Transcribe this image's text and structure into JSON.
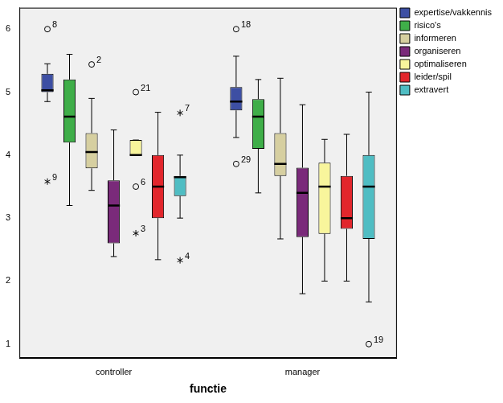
{
  "chart_data": {
    "type": "box",
    "x_label": "functie",
    "categories": [
      "controller",
      "manager"
    ],
    "ylim": [
      0.78,
      6.34
    ],
    "yticks": [
      1,
      2,
      3,
      4,
      5,
      6
    ],
    "grid": false,
    "legend": "right",
    "series": [
      {
        "name": "expertise/vakkennis",
        "color": "#3d4fa3",
        "values": [
          {
            "min": 4.85,
            "q1": 5.0,
            "median": 5.03,
            "q3": 5.29,
            "max": 5.45,
            "outliers": [
              {
                "value": 6.0,
                "label": "8",
                "marker": "circle"
              },
              {
                "value": 3.58,
                "label": "9",
                "marker": "star"
              }
            ]
          },
          {
            "min": 4.28,
            "q1": 4.71,
            "median": 4.85,
            "q3": 5.08,
            "max": 5.57,
            "outliers": [
              {
                "value": 6.0,
                "label": "18",
                "marker": "circle"
              },
              {
                "value": 3.86,
                "label": "29",
                "marker": "circle"
              }
            ]
          }
        ]
      },
      {
        "name": "risico's",
        "color": "#3fae49",
        "values": [
          {
            "min": 3.2,
            "q1": 4.2,
            "median": 4.61,
            "q3": 5.2,
            "max": 5.6,
            "outliers": []
          },
          {
            "min": 3.4,
            "q1": 4.1,
            "median": 4.61,
            "q3": 4.89,
            "max": 5.2,
            "outliers": []
          }
        ]
      },
      {
        "name": "informeren",
        "color": "#d6cfa0",
        "values": [
          {
            "min": 3.44,
            "q1": 3.79,
            "median": 4.05,
            "q3": 4.35,
            "max": 4.9,
            "outliers": [
              {
                "value": 5.44,
                "label": "2",
                "marker": "circle"
              }
            ]
          },
          {
            "min": 2.67,
            "q1": 3.67,
            "median": 3.86,
            "q3": 4.35,
            "max": 5.22,
            "outliers": []
          }
        ]
      },
      {
        "name": "organiseren",
        "color": "#7a2a7a",
        "values": [
          {
            "min": 2.39,
            "q1": 2.6,
            "median": 3.2,
            "q3": 3.6,
            "max": 4.4,
            "outliers": []
          },
          {
            "min": 1.8,
            "q1": 2.7,
            "median": 3.4,
            "q3": 3.8,
            "max": 4.8,
            "outliers": []
          }
        ]
      },
      {
        "name": "optimaliseren",
        "color": "#f8f59c",
        "values": [
          {
            "min": 4.0,
            "q1": 4.0,
            "median": 4.0,
            "q3": 4.24,
            "max": 4.24,
            "outliers": [
              {
                "value": 5.0,
                "label": "21",
                "marker": "circle"
              },
              {
                "value": 3.5,
                "label": "6",
                "marker": "circle"
              },
              {
                "value": 2.76,
                "label": "3",
                "marker": "star"
              }
            ]
          },
          {
            "min": 2.0,
            "q1": 2.75,
            "median": 3.5,
            "q3": 3.88,
            "max": 4.25,
            "outliers": []
          }
        ]
      },
      {
        "name": "leider/spil",
        "color": "#e2262c",
        "values": [
          {
            "min": 2.34,
            "q1": 3.0,
            "median": 3.5,
            "q3": 4.0,
            "max": 4.68,
            "outliers": []
          },
          {
            "min": 2.0,
            "q1": 2.83,
            "median": 3.0,
            "q3": 3.67,
            "max": 4.33,
            "outliers": []
          }
        ]
      },
      {
        "name": "extravert",
        "color": "#4fbdc3",
        "values": [
          {
            "min": 3.0,
            "q1": 3.35,
            "median": 3.65,
            "q3": 3.67,
            "max": 4.0,
            "outliers": [
              {
                "value": 4.67,
                "label": "7",
                "marker": "star"
              },
              {
                "value": 2.33,
                "label": "4",
                "marker": "star"
              }
            ]
          },
          {
            "min": 1.67,
            "q1": 2.67,
            "median": 3.5,
            "q3": 4.0,
            "max": 5.0,
            "outliers": [
              {
                "value": 1.0,
                "label": "19",
                "marker": "circle"
              }
            ]
          }
        ]
      }
    ]
  }
}
